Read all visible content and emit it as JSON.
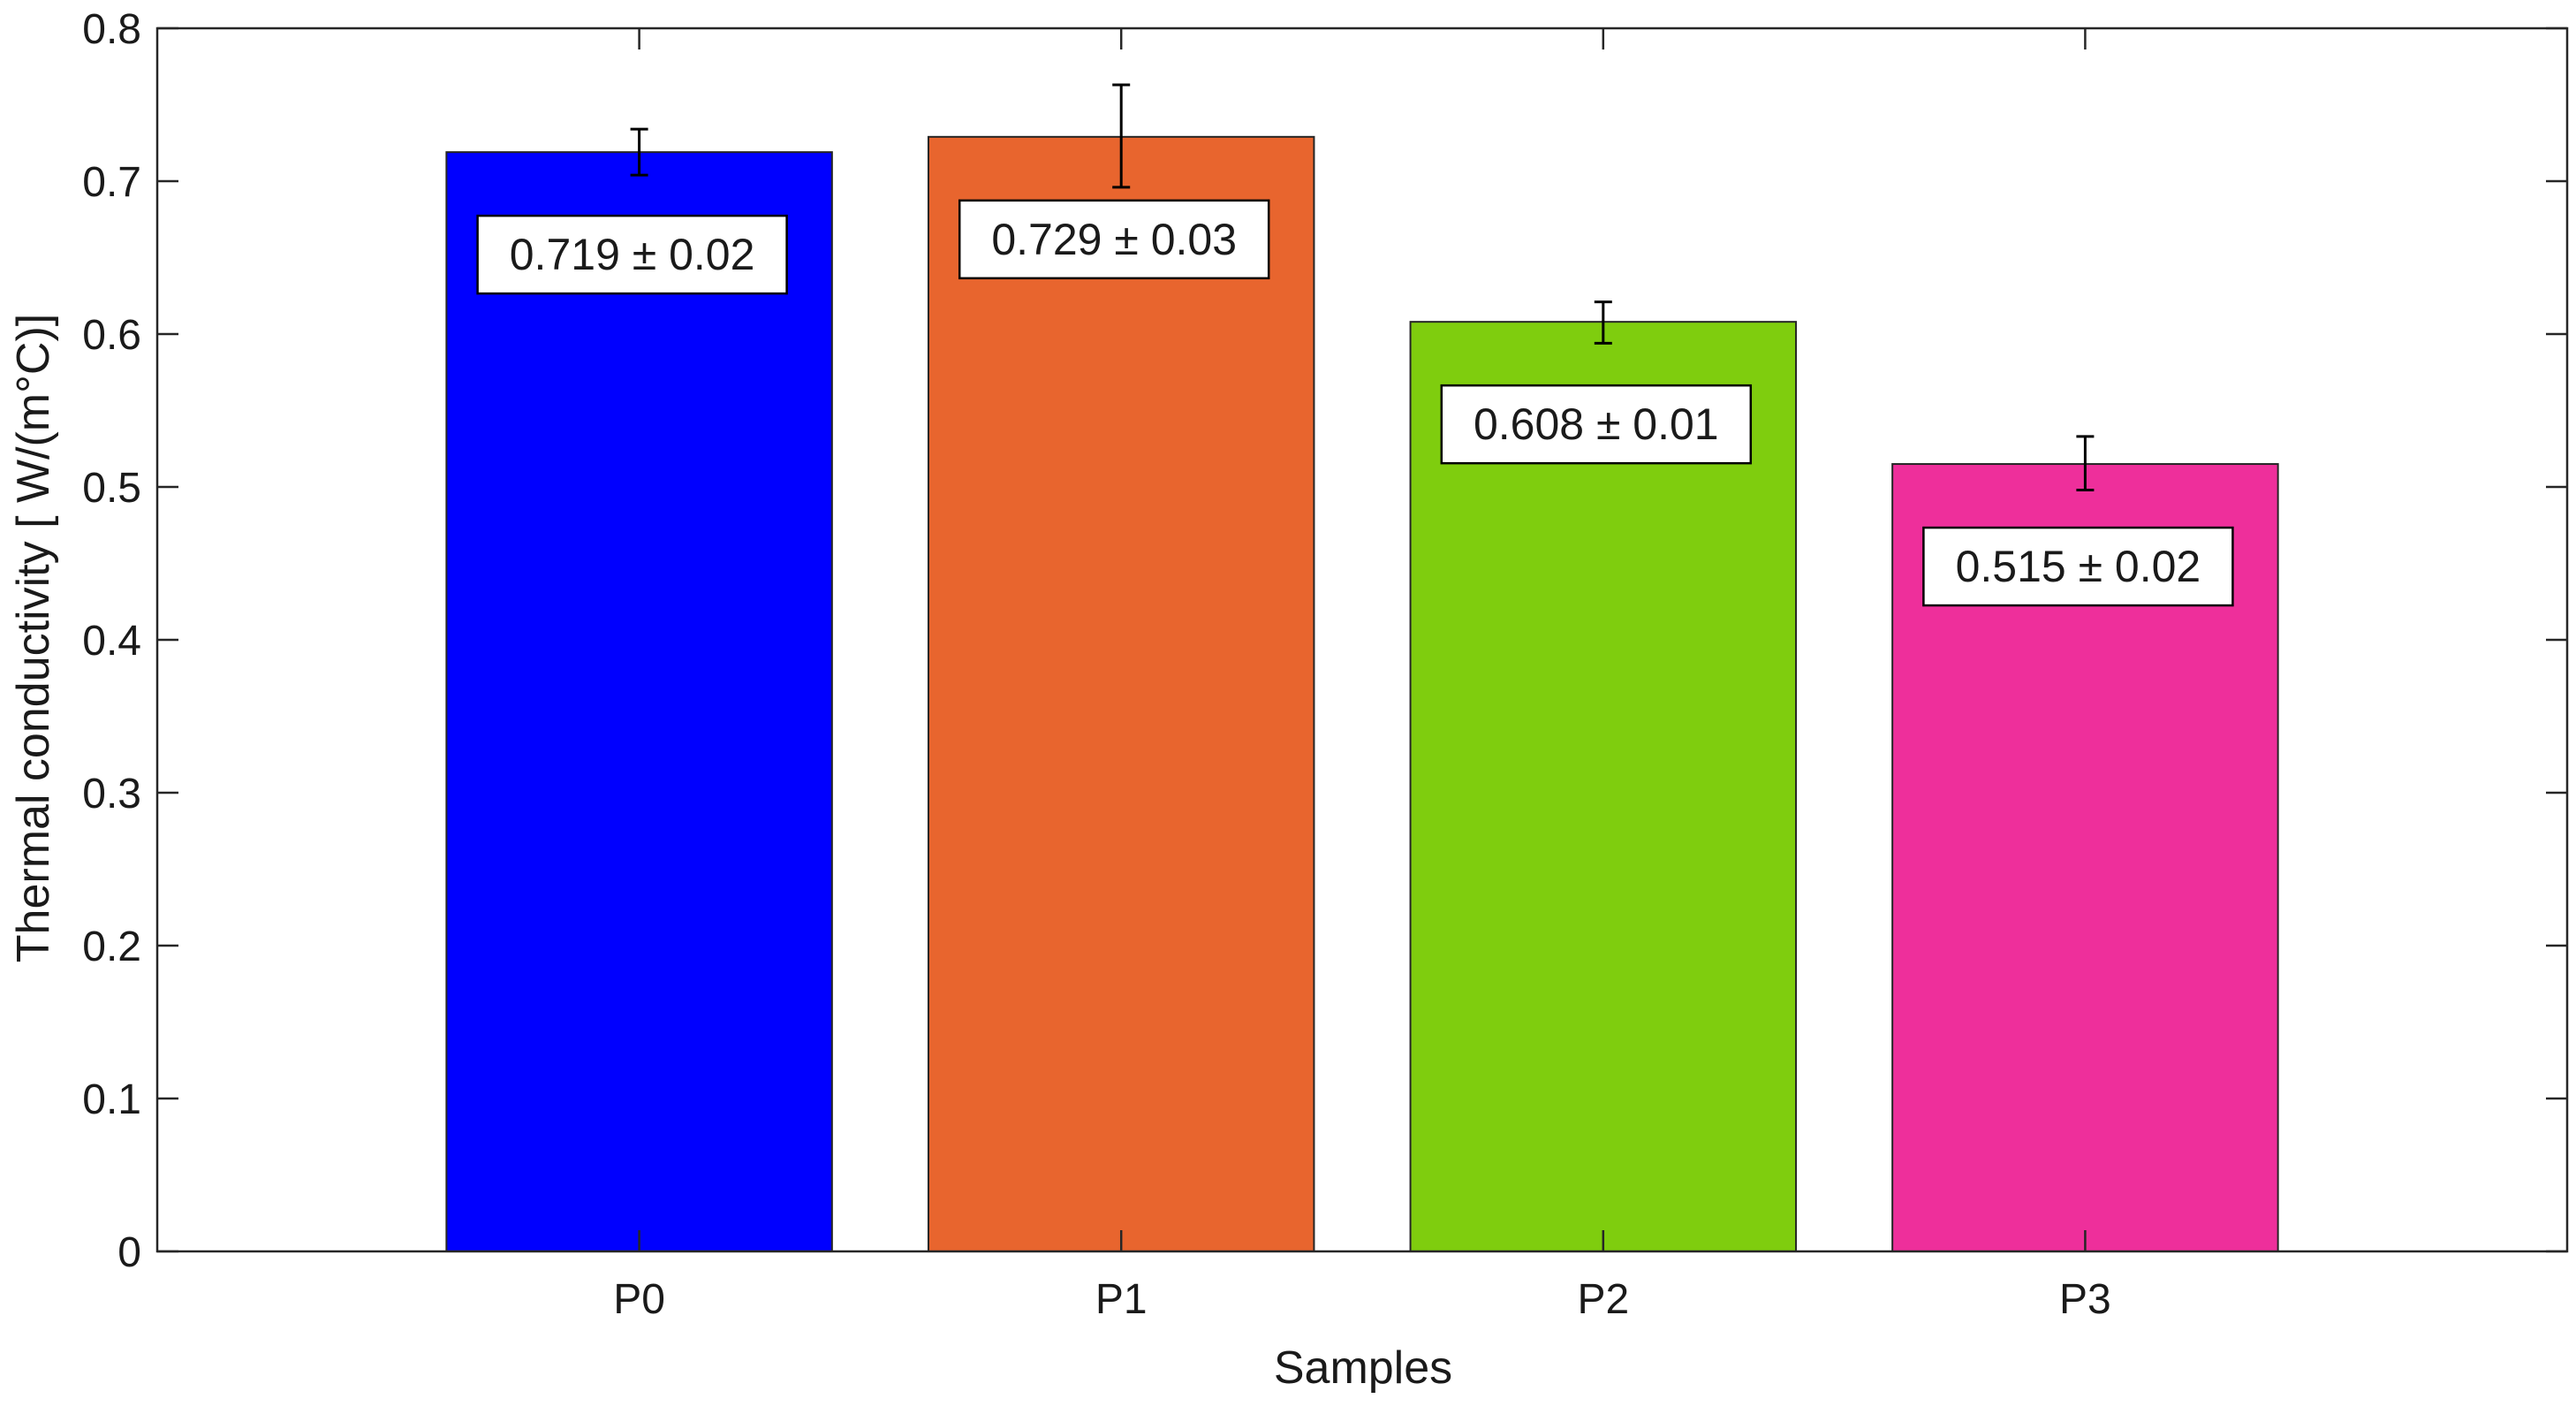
{
  "chart_data": {
    "type": "bar",
    "title": "",
    "xlabel": "Samples",
    "ylabel": "Thermal conductivity [ W/(m°C)]",
    "categories": [
      "P0",
      "P1",
      "P2",
      "P3"
    ],
    "values": [
      0.719,
      0.729,
      0.608,
      0.515
    ],
    "error_low": [
      0.704,
      0.696,
      0.594,
      0.498
    ],
    "error_high": [
      0.734,
      0.763,
      0.621,
      0.533
    ],
    "data_labels": [
      "0.719 ± 0.02",
      "0.729 ± 0.03",
      "0.608 ± 0.01",
      "0.515 ± 0.02"
    ],
    "bar_colors": [
      "#0000ff",
      "#e8652e",
      "#7fcd0e",
      "#ee2f9b"
    ],
    "ylim": [
      0,
      0.8
    ],
    "xlim": [
      0,
      5
    ],
    "y_ticks": [
      0,
      0.1,
      0.2,
      0.3,
      0.4,
      0.5,
      0.6,
      0.7,
      0.8
    ],
    "y_tick_labels": [
      "0",
      "0.1",
      "0.2",
      "0.3",
      "0.4",
      "0.5",
      "0.6",
      "0.7",
      "0.8"
    ],
    "grid": false,
    "legend": "none"
  }
}
